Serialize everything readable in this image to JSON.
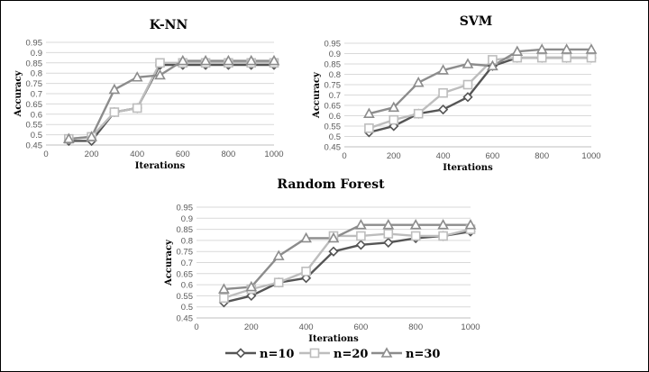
{
  "colors": {
    "n10": "#555555",
    "n20": "#bdbdbd",
    "n30": "#8c8c8c",
    "grid": "#d9d9d9",
    "axis": "#bfbfbf"
  },
  "legend": [
    {
      "label": "n=10",
      "marker": "diamond"
    },
    {
      "label": "n=20",
      "marker": "square"
    },
    {
      "label": "n=30",
      "marker": "triangle"
    }
  ],
  "chart_data": [
    {
      "type": "line",
      "title": "K-NN",
      "xlabel": "Iterations",
      "ylabel": "Accuracy",
      "xlim": [
        0,
        1000
      ],
      "ylim": [
        0.45,
        0.95
      ],
      "x_ticks": [
        0,
        200,
        400,
        600,
        800,
        1000
      ],
      "y_ticks": [
        0.45,
        0.5,
        0.55,
        0.6,
        0.65,
        0.7,
        0.75,
        0.8,
        0.85,
        0.9,
        0.95
      ],
      "x": [
        100,
        200,
        300,
        400,
        500,
        600,
        700,
        800,
        900,
        1000
      ],
      "series": [
        {
          "name": "n=10",
          "values": [
            0.47,
            0.47,
            0.61,
            0.63,
            0.84,
            0.84,
            0.84,
            0.84,
            0.84,
            0.84
          ]
        },
        {
          "name": "n=20",
          "values": [
            0.48,
            0.49,
            0.61,
            0.63,
            0.85,
            0.85,
            0.85,
            0.85,
            0.85,
            0.85
          ]
        },
        {
          "name": "n=30",
          "values": [
            0.48,
            0.49,
            0.72,
            0.78,
            0.79,
            0.86,
            0.86,
            0.86,
            0.86,
            0.86
          ]
        }
      ],
      "grid": true
    },
    {
      "type": "line",
      "title": "SVM",
      "xlabel": "Iterations",
      "ylabel": "Accuracy",
      "xlim": [
        0,
        1000
      ],
      "ylim": [
        0.45,
        0.95
      ],
      "x_ticks": [
        0,
        200,
        400,
        600,
        800,
        1000
      ],
      "y_ticks": [
        0.45,
        0.5,
        0.55,
        0.6,
        0.65,
        0.7,
        0.75,
        0.8,
        0.85,
        0.9,
        0.95
      ],
      "x": [
        100,
        200,
        300,
        400,
        500,
        600,
        700,
        800,
        900,
        1000
      ],
      "series": [
        {
          "name": "n=10",
          "values": [
            0.52,
            0.55,
            0.61,
            0.63,
            0.69,
            0.84,
            0.88,
            0.88,
            0.88,
            0.88
          ]
        },
        {
          "name": "n=20",
          "values": [
            0.54,
            0.58,
            0.61,
            0.71,
            0.75,
            0.87,
            0.88,
            0.88,
            0.88,
            0.88
          ]
        },
        {
          "name": "n=30",
          "values": [
            0.61,
            0.64,
            0.76,
            0.82,
            0.85,
            0.84,
            0.91,
            0.92,
            0.92,
            0.92
          ]
        }
      ],
      "grid": true
    },
    {
      "type": "line",
      "title": "Random Forest",
      "xlabel": "Iterations",
      "ylabel": "Accuracy",
      "xlim": [
        0,
        1000
      ],
      "ylim": [
        0.45,
        0.95
      ],
      "x_ticks": [
        0,
        200,
        400,
        600,
        800,
        1000
      ],
      "y_ticks": [
        0.45,
        0.5,
        0.55,
        0.6,
        0.65,
        0.7,
        0.75,
        0.8,
        0.85,
        0.9,
        0.95
      ],
      "x": [
        100,
        200,
        300,
        400,
        500,
        600,
        700,
        800,
        900,
        1000
      ],
      "series": [
        {
          "name": "n=10",
          "values": [
            0.52,
            0.55,
            0.61,
            0.63,
            0.75,
            0.78,
            0.79,
            0.81,
            0.82,
            0.84
          ]
        },
        {
          "name": "n=20",
          "values": [
            0.54,
            0.58,
            0.61,
            0.66,
            0.82,
            0.82,
            0.83,
            0.82,
            0.82,
            0.85
          ]
        },
        {
          "name": "n=30",
          "values": [
            0.58,
            0.59,
            0.73,
            0.81,
            0.81,
            0.87,
            0.87,
            0.87,
            0.87,
            0.87
          ]
        }
      ],
      "grid": true
    }
  ]
}
